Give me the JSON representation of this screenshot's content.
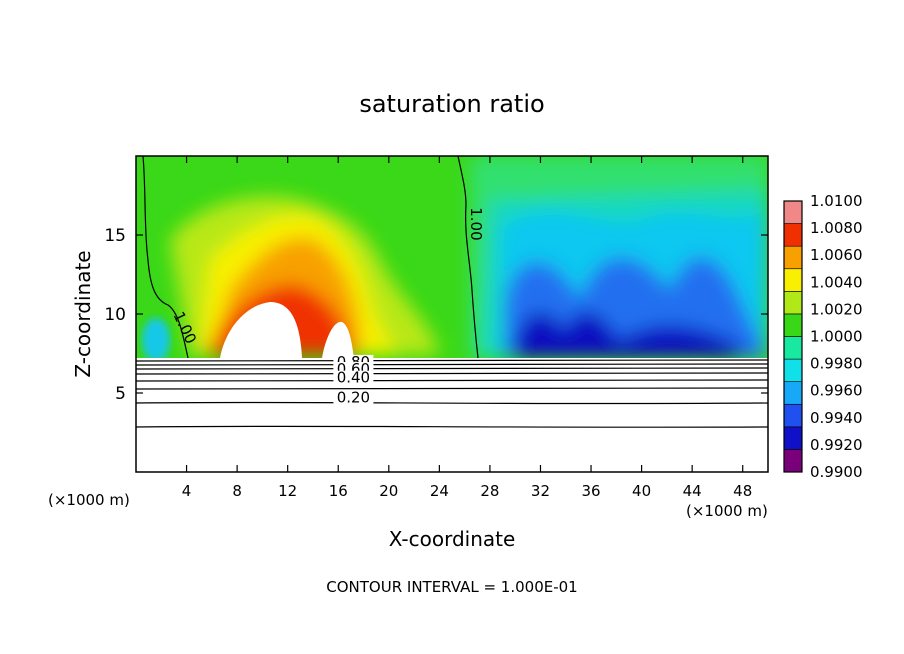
{
  "chart_data": {
    "type": "heatmap",
    "title": "saturation ratio",
    "xlabel": "X-coordinate",
    "ylabel": "Z-coordinate",
    "x_unit_left": "(×1000 m)",
    "x_unit_right": "(×1000 m)",
    "xlim": [
      0,
      50
    ],
    "ylim": [
      0,
      20
    ],
    "x_ticks": [
      4,
      8,
      12,
      16,
      20,
      24,
      28,
      32,
      36,
      40,
      44,
      48
    ],
    "y_ticks": [
      5,
      10,
      15
    ],
    "colorbar": {
      "levels": [
        0.99,
        0.992,
        0.994,
        0.996,
        0.998,
        1.0,
        1.002,
        1.004,
        1.006,
        1.008,
        1.01
      ],
      "labels": [
        "0.9900",
        "0.9920",
        "0.9940",
        "0.9960",
        "0.9980",
        "1.0000",
        "1.0020",
        "1.0040",
        "1.0060",
        "1.0080",
        "1.0100"
      ],
      "colors": [
        "#7a007a",
        "#1010c8",
        "#2050f0",
        "#18a8f8",
        "#10e0e8",
        "#18e8a0",
        "#38d818",
        "#b0e818",
        "#f8f000",
        "#f8a000",
        "#f03000",
        "#f08888"
      ]
    },
    "contour_labels": [
      {
        "text": "1.00",
        "x": 26.5,
        "y": 15.7
      },
      {
        "text": "1.00",
        "x": 3.5,
        "y": 9.0
      },
      {
        "text": "0.80",
        "x": 17.2,
        "y": 6.65
      },
      {
        "text": "0.60",
        "x": 17.2,
        "y": 6.2
      },
      {
        "text": "0.40",
        "x": 17.2,
        "y": 5.65
      },
      {
        "text": "0.20",
        "x": 17.2,
        "y": 4.4
      }
    ],
    "footnote": "CONTOUR INTERVAL = 1.000E-01"
  }
}
